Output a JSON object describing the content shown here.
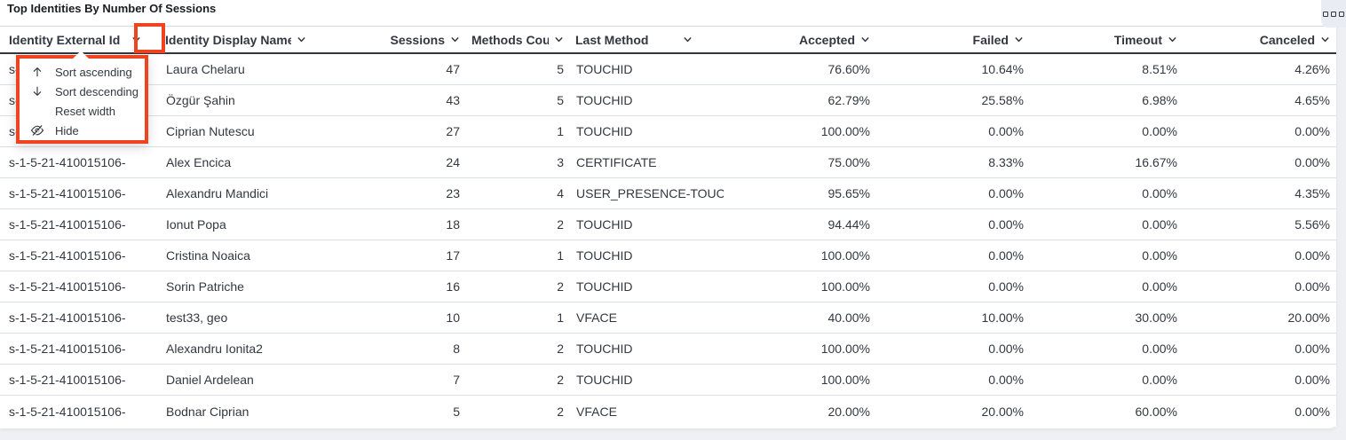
{
  "panel": {
    "title": "Top Identities By Number Of Sessions",
    "options_icon": "boxes-horizontal-icon"
  },
  "annotation_color": "#f0431f",
  "table": {
    "columns": [
      {
        "label": "Identity External Id",
        "key": "id",
        "slug": "identity-external-id",
        "align": "left"
      },
      {
        "label": "Identity Display Name",
        "key": "name",
        "slug": "identity-display-name",
        "align": "left"
      },
      {
        "label": "Sessions",
        "key": "sessions",
        "slug": "sessions",
        "align": "right"
      },
      {
        "label": "Methods Count",
        "key": "methods",
        "slug": "methods-count",
        "align": "right"
      },
      {
        "label": "Last Method",
        "key": "last_method",
        "slug": "last-method",
        "align": "left"
      },
      {
        "label": "Accepted",
        "key": "accepted",
        "slug": "accepted",
        "align": "right"
      },
      {
        "label": "Failed",
        "key": "failed",
        "slug": "failed",
        "align": "right"
      },
      {
        "label": "Timeout",
        "key": "timeout",
        "slug": "timeout",
        "align": "right"
      },
      {
        "label": "Canceled",
        "key": "canceled",
        "slug": "canceled",
        "align": "right"
      }
    ],
    "rows": [
      {
        "id": "s-1-5-21-410015106-",
        "name": "Laura Chelaru",
        "sessions": "47",
        "methods": "5",
        "last_method": "TOUCHID",
        "accepted": "76.60%",
        "failed": "10.64%",
        "timeout": "8.51%",
        "canceled": "4.26%"
      },
      {
        "id": "s-1-5-21-410015106-",
        "name": "Özgür Şahin",
        "sessions": "43",
        "methods": "5",
        "last_method": "TOUCHID",
        "accepted": "62.79%",
        "failed": "25.58%",
        "timeout": "6.98%",
        "canceled": "4.65%"
      },
      {
        "id": "s-1-5-21-410015106-",
        "name": "Ciprian Nutescu",
        "sessions": "27",
        "methods": "1",
        "last_method": "TOUCHID",
        "accepted": "100.00%",
        "failed": "0.00%",
        "timeout": "0.00%",
        "canceled": "0.00%"
      },
      {
        "id": "s-1-5-21-410015106-",
        "name": "Alex Encica",
        "sessions": "24",
        "methods": "3",
        "last_method": "CERTIFICATE",
        "accepted": "75.00%",
        "failed": "8.33%",
        "timeout": "16.67%",
        "canceled": "0.00%"
      },
      {
        "id": "s-1-5-21-410015106-",
        "name": "Alexandru Mandici",
        "sessions": "23",
        "methods": "4",
        "last_method": "USER_PRESENCE-TOUC",
        "accepted": "95.65%",
        "failed": "0.00%",
        "timeout": "0.00%",
        "canceled": "4.35%"
      },
      {
        "id": "s-1-5-21-410015106-",
        "name": "Ionut Popa",
        "sessions": "18",
        "methods": "2",
        "last_method": "TOUCHID",
        "accepted": "94.44%",
        "failed": "0.00%",
        "timeout": "0.00%",
        "canceled": "5.56%"
      },
      {
        "id": "s-1-5-21-410015106-",
        "name": "Cristina Noaica",
        "sessions": "17",
        "methods": "1",
        "last_method": "TOUCHID",
        "accepted": "100.00%",
        "failed": "0.00%",
        "timeout": "0.00%",
        "canceled": "0.00%"
      },
      {
        "id": "s-1-5-21-410015106-",
        "name": "Sorin Patriche",
        "sessions": "16",
        "methods": "2",
        "last_method": "TOUCHID",
        "accepted": "100.00%",
        "failed": "0.00%",
        "timeout": "0.00%",
        "canceled": "0.00%"
      },
      {
        "id": "s-1-5-21-410015106-",
        "name": "test33, geo",
        "sessions": "10",
        "methods": "1",
        "last_method": "VFACE",
        "accepted": "40.00%",
        "failed": "10.00%",
        "timeout": "30.00%",
        "canceled": "20.00%"
      },
      {
        "id": "s-1-5-21-410015106-",
        "name": "Alexandru Ionita2",
        "sessions": "8",
        "methods": "2",
        "last_method": "TOUCHID",
        "accepted": "100.00%",
        "failed": "0.00%",
        "timeout": "0.00%",
        "canceled": "0.00%"
      },
      {
        "id": "s-1-5-21-410015106-",
        "name": "Daniel Ardelean",
        "sessions": "7",
        "methods": "2",
        "last_method": "TOUCHID",
        "accepted": "100.00%",
        "failed": "0.00%",
        "timeout": "0.00%",
        "canceled": "0.00%"
      },
      {
        "id": "s-1-5-21-410015106-",
        "name": "Bodnar Ciprian",
        "sessions": "5",
        "methods": "2",
        "last_method": "VFACE",
        "accepted": "20.00%",
        "failed": "20.00%",
        "timeout": "60.00%",
        "canceled": "0.00%"
      }
    ]
  },
  "column_menu": {
    "anchored_column": "Identity External Id",
    "items": [
      {
        "icon": "arrow-up-icon",
        "label": "Sort ascending",
        "slug": "sort-ascending"
      },
      {
        "icon": "arrow-down-icon",
        "label": "Sort descending",
        "slug": "sort-descending"
      },
      {
        "icon": null,
        "label": "Reset width",
        "slug": "reset-width"
      },
      {
        "icon": "eye-slash-icon",
        "label": "Hide",
        "slug": "hide"
      }
    ]
  }
}
